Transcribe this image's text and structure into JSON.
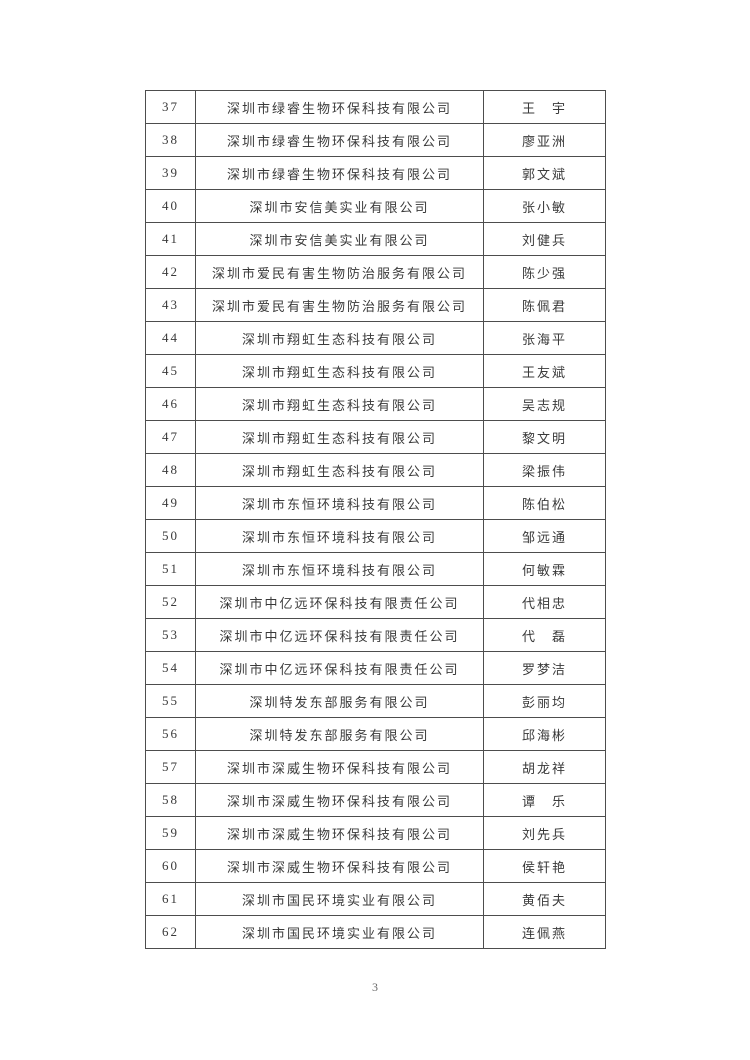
{
  "page": {
    "number": "3"
  },
  "table": {
    "rows": [
      {
        "no": "37",
        "company": "深圳市绿睿生物环保科技有限公司",
        "name": "王　宇"
      },
      {
        "no": "38",
        "company": "深圳市绿睿生物环保科技有限公司",
        "name": "廖亚洲"
      },
      {
        "no": "39",
        "company": "深圳市绿睿生物环保科技有限公司",
        "name": "郭文斌"
      },
      {
        "no": "40",
        "company": "深圳市安信美实业有限公司",
        "name": "张小敏"
      },
      {
        "no": "41",
        "company": "深圳市安信美实业有限公司",
        "name": "刘健兵"
      },
      {
        "no": "42",
        "company": "深圳市爱民有害生物防治服务有限公司",
        "name": "陈少强"
      },
      {
        "no": "43",
        "company": "深圳市爱民有害生物防治服务有限公司",
        "name": "陈佩君"
      },
      {
        "no": "44",
        "company": "深圳市翔虹生态科技有限公司",
        "name": "张海平"
      },
      {
        "no": "45",
        "company": "深圳市翔虹生态科技有限公司",
        "name": "王友斌"
      },
      {
        "no": "46",
        "company": "深圳市翔虹生态科技有限公司",
        "name": "吴志规"
      },
      {
        "no": "47",
        "company": "深圳市翔虹生态科技有限公司",
        "name": "黎文明"
      },
      {
        "no": "48",
        "company": "深圳市翔虹生态科技有限公司",
        "name": "梁振伟"
      },
      {
        "no": "49",
        "company": "深圳市东恒环境科技有限公司",
        "name": "陈伯松"
      },
      {
        "no": "50",
        "company": "深圳市东恒环境科技有限公司",
        "name": "邹远通"
      },
      {
        "no": "51",
        "company": "深圳市东恒环境科技有限公司",
        "name": "何敏霖"
      },
      {
        "no": "52",
        "company": "深圳市中亿远环保科技有限责任公司",
        "name": "代相忠"
      },
      {
        "no": "53",
        "company": "深圳市中亿远环保科技有限责任公司",
        "name": "代　磊"
      },
      {
        "no": "54",
        "company": "深圳市中亿远环保科技有限责任公司",
        "name": "罗梦洁"
      },
      {
        "no": "55",
        "company": "深圳特发东部服务有限公司",
        "name": "彭丽均"
      },
      {
        "no": "56",
        "company": "深圳特发东部服务有限公司",
        "name": "邱海彬"
      },
      {
        "no": "57",
        "company": "深圳市深威生物环保科技有限公司",
        "name": "胡龙祥"
      },
      {
        "no": "58",
        "company": "深圳市深威生物环保科技有限公司",
        "name": "谭　乐"
      },
      {
        "no": "59",
        "company": "深圳市深威生物环保科技有限公司",
        "name": "刘先兵"
      },
      {
        "no": "60",
        "company": "深圳市深威生物环保科技有限公司",
        "name": "侯轩艳"
      },
      {
        "no": "61",
        "company": "深圳市国民环境实业有限公司",
        "name": "黄佰夫"
      },
      {
        "no": "62",
        "company": "深圳市国民环境实业有限公司",
        "name": "连佩燕"
      }
    ]
  }
}
